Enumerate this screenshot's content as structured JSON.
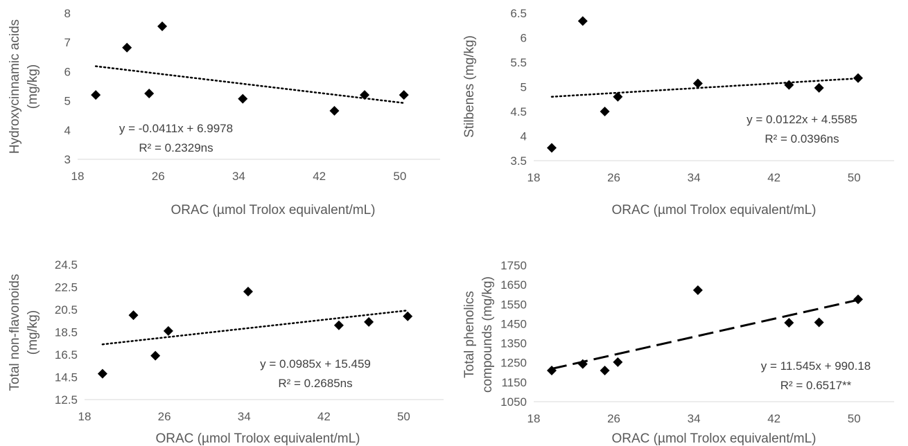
{
  "chart_data": [
    {
      "type": "scatter",
      "xlabel": "ORAC (µmol Trolox equivalent/mL)",
      "ylabel": [
        "Hydroxycinnamic acids",
        "(mg/kg)"
      ],
      "xlim": [
        18,
        54
      ],
      "ylim": [
        3,
        8
      ],
      "xticks": [
        18,
        26,
        34,
        42,
        50
      ],
      "yticks": [
        3,
        4,
        5,
        6,
        7,
        8
      ],
      "x": [
        19.8,
        22.9,
        25.1,
        26.4,
        34.4,
        43.5,
        46.5,
        50.4
      ],
      "y": [
        5.2,
        6.82,
        5.25,
        7.55,
        5.07,
        4.66,
        5.2,
        5.2
      ],
      "trendline": {
        "slope": -0.0411,
        "intercept": 6.9978,
        "style": "dotted"
      },
      "equation": "y = -0.0411x + 6.9978",
      "r2": "R² = 0.2329ns"
    },
    {
      "type": "scatter",
      "xlabel": "ORAC (µmol Trolox equivalent/mL)",
      "ylabel": [
        "Stilbenes (mg/kg)"
      ],
      "xlim": [
        18,
        54
      ],
      "ylim": [
        3.5,
        6.5
      ],
      "xticks": [
        18,
        26,
        34,
        42,
        50
      ],
      "yticks": [
        3.5,
        4,
        4.5,
        5,
        5.5,
        6,
        6.5
      ],
      "x": [
        19.8,
        22.9,
        25.1,
        26.4,
        34.4,
        43.5,
        46.5,
        50.4
      ],
      "y": [
        3.76,
        6.34,
        4.5,
        4.8,
        5.07,
        5.04,
        4.98,
        5.18
      ],
      "trendline": {
        "slope": 0.0122,
        "intercept": 4.5585,
        "style": "dotted"
      },
      "equation": "y = 0.0122x + 4.5585",
      "r2": "R² = 0.0396ns"
    },
    {
      "type": "scatter",
      "xlabel": "ORAC (µmol Trolox equivalent/mL)",
      "ylabel": [
        "Total non-flavonoids",
        "(mg/kg)"
      ],
      "xlim": [
        18,
        54
      ],
      "ylim": [
        12.5,
        24.5
      ],
      "xticks": [
        18,
        26,
        34,
        42,
        50
      ],
      "yticks": [
        12.5,
        14.5,
        16.5,
        18.5,
        20.5,
        22.5,
        24.5
      ],
      "ytick_labels": [
        "12.5",
        "14.5",
        "16.5",
        "18.5",
        "20.5",
        "22.5",
        "24.5"
      ],
      "x": [
        19.8,
        22.9,
        25.1,
        26.4,
        34.4,
        43.5,
        46.5,
        50.4
      ],
      "y": [
        14.8,
        20.0,
        16.4,
        18.6,
        22.1,
        19.1,
        19.4,
        19.9
      ],
      "trendline": {
        "slope": 0.0985,
        "intercept": 15.459,
        "style": "dotted"
      },
      "equation": "y = 0.0985x + 15.459",
      "r2": "R² = 0.2685ns"
    },
    {
      "type": "scatter",
      "xlabel": "ORAC (µmol Trolox equivalent/mL)",
      "ylabel": [
        "Total phenolics",
        "compounds (mg/kg)"
      ],
      "xlim": [
        18,
        54
      ],
      "ylim": [
        1050,
        1750
      ],
      "xticks": [
        18,
        26,
        34,
        42,
        50
      ],
      "yticks": [
        1050,
        1150,
        1250,
        1350,
        1450,
        1550,
        1650,
        1750
      ],
      "x": [
        19.8,
        22.9,
        25.1,
        26.4,
        34.4,
        43.5,
        46.5,
        50.4
      ],
      "y": [
        1210,
        1243,
        1210,
        1253,
        1622,
        1455,
        1457,
        1575
      ],
      "trendline": {
        "slope": 11.545,
        "intercept": 990.18,
        "style": "dashed"
      },
      "equation": "y = 11.545x + 990.18",
      "r2": "R² = 0.6517**"
    }
  ]
}
